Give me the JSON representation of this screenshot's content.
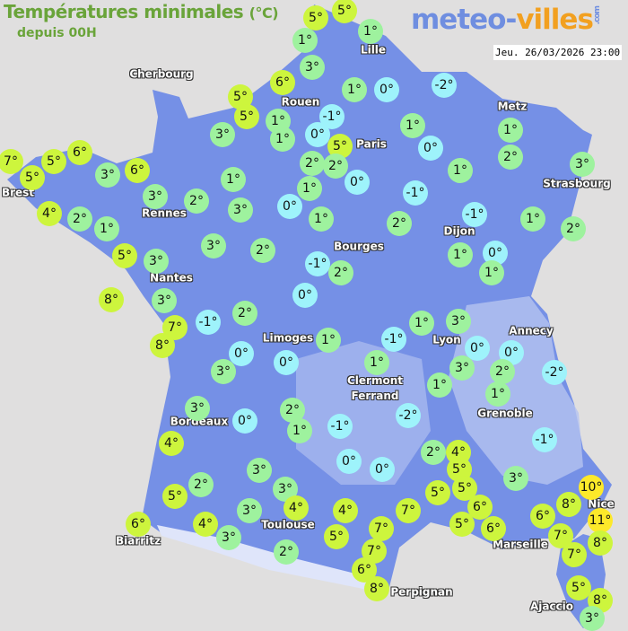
{
  "header": {
    "title": "Températures minimales",
    "unit": "(°C)",
    "subtitle": "depuis 00H",
    "logo": {
      "part1": "meteo-",
      "part2": "villes",
      "suffix": ".com"
    },
    "datetime": "Jeu. 26/03/2026 23:00"
  },
  "colors": {
    "sea": "#e0dfdf",
    "land": "#7590e6",
    "cold": "#9ef3fb",
    "cool": "#9ef29e",
    "mild": "#cdf53d",
    "warm": "#fde92a"
  },
  "cities": [
    "Cherbourg",
    "Lille",
    "Rouen",
    "Paris",
    "Metz",
    "Strasbourg",
    "Brest",
    "Rennes",
    "Dijon",
    "Bourges",
    "Nantes",
    "Limoges",
    "Annecy",
    "Lyon",
    "Clermont\nFerrand",
    "Grenoble",
    "Bordeaux",
    "Nice",
    "Toulouse",
    "Marseille",
    "Biarritz",
    "Perpignan",
    "Ajaccio"
  ],
  "temperatures": [
    5,
    5,
    1,
    1,
    3,
    6,
    1,
    0,
    -2,
    5,
    5,
    1,
    1,
    -1,
    0,
    5,
    1,
    0,
    1,
    2,
    3,
    3,
    2,
    2,
    0,
    1,
    -1,
    -1,
    1,
    2,
    1,
    0,
    1,
    2,
    1,
    0,
    1,
    7,
    5,
    5,
    6,
    3,
    6,
    4,
    2,
    1,
    3,
    2,
    1,
    3,
    5,
    3,
    3,
    2,
    8,
    3,
    7,
    8,
    -1,
    2,
    -1,
    2,
    0,
    0,
    3,
    0,
    1,
    3,
    0,
    4,
    2,
    1,
    3,
    2,
    5,
    3,
    6,
    4,
    3,
    4,
    3,
    2,
    1,
    3,
    -1,
    0,
    0,
    3,
    2,
    -2,
    1,
    1,
    1,
    -2,
    -1,
    -1,
    0,
    0,
    2,
    4,
    5,
    5,
    5,
    3,
    10,
    8,
    11,
    6,
    5,
    6,
    6,
    7,
    7,
    8,
    4,
    7,
    7,
    5,
    7,
    6,
    8,
    5,
    8,
    3
  ]
}
